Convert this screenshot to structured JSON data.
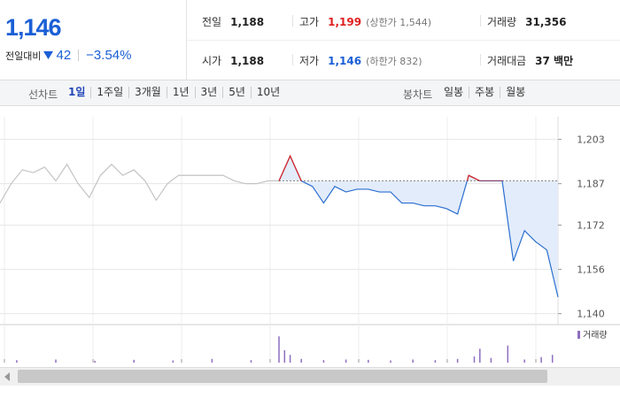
{
  "summary": {
    "price": "1,146",
    "change_label": "전일대비",
    "change": "42",
    "change_rate": "−3.54%"
  },
  "info": [
    [
      {
        "label": "전일",
        "value": "1,188"
      },
      {
        "label": "고가",
        "value": "1,199",
        "note": "(상한가 1,544)"
      },
      {
        "label": "거래량",
        "value": "31,356"
      }
    ],
    [
      {
        "label": "시가",
        "value": "1,188"
      },
      {
        "label": "저가",
        "value": "1,146",
        "note": "(하한가 832)"
      },
      {
        "label": "거래대금",
        "value": "37 백만"
      }
    ]
  ],
  "tabs": {
    "line_label": "선차트",
    "line": [
      "1일",
      "1주일",
      "3개월",
      "1년",
      "3년",
      "5년",
      "10년"
    ],
    "candle_label": "봉차트",
    "candle": [
      "일봉",
      "주봉",
      "월봉"
    ]
  },
  "chart_data": {
    "type": "line",
    "xlim": [
      0,
      100
    ],
    "ylim": [
      1137,
      1208
    ],
    "yticks": [
      {
        "value": 1203,
        "label": "1,203"
      },
      {
        "value": 1187,
        "label": "1,187"
      },
      {
        "value": 1172,
        "label": "1,172"
      },
      {
        "value": 1156,
        "label": "1,156"
      },
      {
        "value": 1140,
        "label": "1,140"
      }
    ],
    "grid": true,
    "baseline": 1188,
    "up_color": "#e02020",
    "down_color": "#2a6fd0",
    "fill_color": "#e3ecfa",
    "series": [
      {
        "color": "#c4c4c4",
        "x": [
          0,
          2,
          4,
          6,
          8,
          10,
          12,
          14,
          16,
          18,
          20,
          22,
          24,
          26,
          28,
          30,
          32,
          34,
          36,
          38,
          40,
          42,
          44,
          46,
          48,
          50
        ],
        "values": [
          1180,
          1187,
          1192,
          1191,
          1193,
          1188,
          1194,
          1187,
          1182,
          1190,
          1194,
          1190,
          1192,
          1188,
          1181,
          1187,
          1190,
          1190,
          1190,
          1190,
          1190,
          1188,
          1187,
          1187,
          1188,
          1188
        ]
      },
      {
        "color": "#2a6fd0",
        "x": [
          50,
          52,
          54,
          56,
          58,
          60,
          62,
          64,
          66,
          68,
          70,
          72,
          74,
          76,
          78,
          80,
          82,
          84,
          86,
          88,
          90,
          92,
          94,
          96,
          98,
          100
        ],
        "values": [
          1188,
          1197,
          1188,
          1186,
          1180,
          1186,
          1184,
          1185,
          1185,
          1184,
          1184,
          1180,
          1180,
          1179,
          1179,
          1178,
          1176,
          1190,
          1188,
          1188,
          1188,
          1159,
          1170,
          1166,
          1163,
          1146
        ]
      }
    ],
    "volume": {
      "label": "거래량",
      "color": "#8e6fc0",
      "ylim": [
        0,
        100
      ],
      "x": [
        3,
        10,
        17,
        24,
        31,
        38,
        45,
        50,
        51,
        52,
        54,
        58,
        62,
        66,
        70,
        74,
        78,
        82,
        85,
        86,
        88,
        91,
        94,
        97,
        99
      ],
      "values": [
        8,
        10,
        6,
        9,
        7,
        12,
        8,
        85,
        40,
        25,
        12,
        8,
        10,
        9,
        7,
        10,
        8,
        12,
        20,
        45,
        15,
        55,
        10,
        18,
        25
      ]
    }
  }
}
